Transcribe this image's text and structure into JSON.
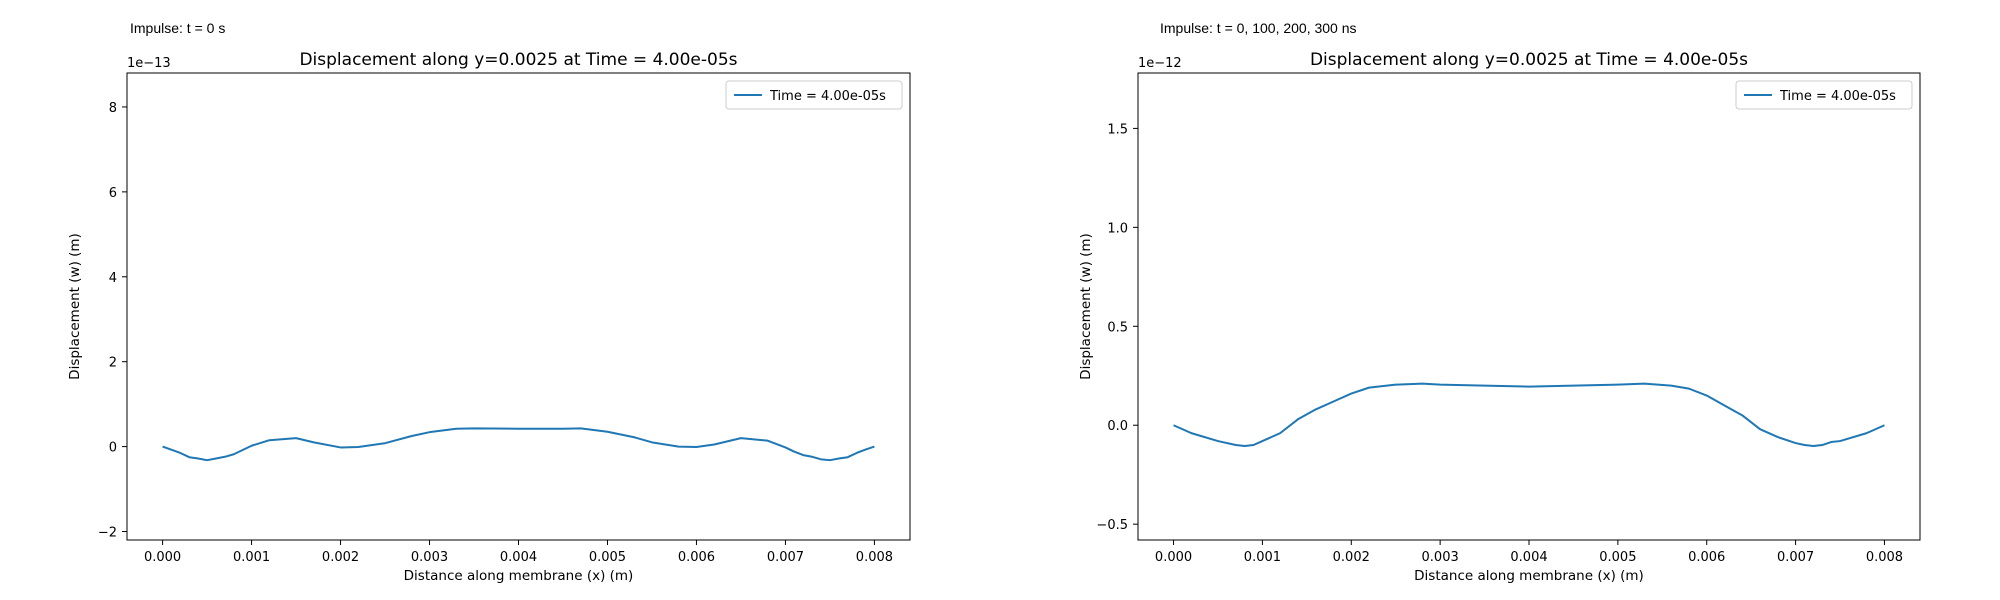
{
  "panels": [
    {
      "caption": "Impulse: t = 0 s",
      "chart_data": {
        "type": "line",
        "title": "Displacement along y=0.0025 at Time = 4.00e-05s",
        "xlabel": "Distance along membrane (x) (m)",
        "ylabel": "Displacement (w) (m)",
        "offset_text": "1e−13",
        "xlim": [
          -0.0004,
          0.0084
        ],
        "ylim": [
          -2.2,
          8.8
        ],
        "xticks": [
          0.0,
          0.001,
          0.002,
          0.003,
          0.004,
          0.005,
          0.006,
          0.007,
          0.008
        ],
        "xtick_labels": [
          "0.000",
          "0.001",
          "0.002",
          "0.003",
          "0.004",
          "0.005",
          "0.006",
          "0.007",
          "0.008"
        ],
        "yticks": [
          -2,
          0,
          2,
          4,
          6,
          8
        ],
        "ytick_labels": [
          "−2",
          "0",
          "2",
          "4",
          "6",
          "8"
        ],
        "grid": false,
        "legend_position": "top-right",
        "color": "#1f77b4",
        "series": [
          {
            "name": "Time = 4.00e-05s",
            "x": [
              0.0,
              0.0002,
              0.0003,
              0.0004,
              0.0005,
              0.0006,
              0.0007,
              0.0008,
              0.001,
              0.0012,
              0.0015,
              0.0017,
              0.002,
              0.0022,
              0.0025,
              0.0028,
              0.003,
              0.0033,
              0.0035,
              0.004,
              0.0045,
              0.0047,
              0.005,
              0.0053,
              0.0055,
              0.0058,
              0.006,
              0.0062,
              0.0065,
              0.0068,
              0.007,
              0.0071,
              0.0072,
              0.0073,
              0.0074,
              0.0075,
              0.0076,
              0.0077,
              0.0078,
              0.0079,
              0.008
            ],
            "y": [
              0.0,
              -0.15,
              -0.25,
              -0.28,
              -0.32,
              -0.28,
              -0.24,
              -0.18,
              0.02,
              0.15,
              0.2,
              0.1,
              -0.02,
              -0.01,
              0.08,
              0.25,
              0.34,
              0.42,
              0.43,
              0.42,
              0.42,
              0.43,
              0.35,
              0.22,
              0.1,
              0.0,
              -0.01,
              0.05,
              0.2,
              0.14,
              -0.02,
              -0.12,
              -0.2,
              -0.24,
              -0.3,
              -0.32,
              -0.28,
              -0.25,
              -0.15,
              -0.07,
              0.0
            ]
          }
        ]
      }
    },
    {
      "caption": "Impulse: t = 0, 100, 200, 300 ns",
      "chart_data": {
        "type": "line",
        "title": "Displacement along y=0.0025 at Time = 4.00e-05s",
        "xlabel": "Distance along membrane (x) (m)",
        "ylabel": "Displacement (w) (m)",
        "offset_text": "1e−12",
        "xlim": [
          -0.0004,
          0.0084
        ],
        "ylim": [
          -0.58,
          1.78
        ],
        "xticks": [
          0.0,
          0.001,
          0.002,
          0.003,
          0.004,
          0.005,
          0.006,
          0.007,
          0.008
        ],
        "xtick_labels": [
          "0.000",
          "0.001",
          "0.002",
          "0.003",
          "0.004",
          "0.005",
          "0.006",
          "0.007",
          "0.008"
        ],
        "yticks": [
          -0.5,
          0.0,
          0.5,
          1.0,
          1.5
        ],
        "ytick_labels": [
          "−0.5",
          "0.0",
          "0.5",
          "1.0",
          "1.5"
        ],
        "grid": false,
        "legend_position": "top-right",
        "color": "#1f77b4",
        "series": [
          {
            "name": "Time = 4.00e-05s",
            "x": [
              0.0,
              0.0002,
              0.0005,
              0.0007,
              0.0008,
              0.0009,
              0.001,
              0.0012,
              0.0014,
              0.0016,
              0.0018,
              0.002,
              0.0022,
              0.0025,
              0.0028,
              0.003,
              0.0035,
              0.004,
              0.0045,
              0.005,
              0.0053,
              0.0056,
              0.0058,
              0.006,
              0.0062,
              0.0064,
              0.0066,
              0.0068,
              0.007,
              0.0071,
              0.0072,
              0.0073,
              0.0074,
              0.0075,
              0.0078,
              0.008
            ],
            "y": [
              0.0,
              -0.04,
              -0.08,
              -0.1,
              -0.105,
              -0.1,
              -0.08,
              -0.04,
              0.03,
              0.08,
              0.12,
              0.16,
              0.19,
              0.205,
              0.21,
              0.205,
              0.2,
              0.195,
              0.2,
              0.205,
              0.21,
              0.2,
              0.185,
              0.15,
              0.1,
              0.05,
              -0.02,
              -0.06,
              -0.09,
              -0.1,
              -0.105,
              -0.1,
              -0.085,
              -0.08,
              -0.04,
              0.0
            ]
          }
        ]
      }
    }
  ]
}
